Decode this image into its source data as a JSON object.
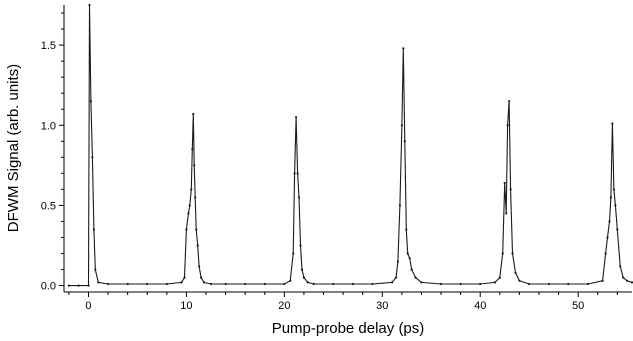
{
  "chart_data": {
    "type": "line",
    "title": "",
    "xlabel": "Pump-probe delay (ps)",
    "ylabel": "DFWM Signal (arb. units)",
    "xlim": [
      -2.5,
      55.5
    ],
    "ylim": [
      -0.04,
      1.75
    ],
    "x_ticks": [
      0,
      10,
      20,
      30,
      40,
      50
    ],
    "y_ticks": [
      0.0,
      0.5,
      1.0,
      1.5
    ],
    "x_tick_labels": [
      "0",
      "10",
      "20",
      "30",
      "40",
      "50"
    ],
    "y_tick_labels": [
      "0.0",
      "0.5",
      "1.0",
      "1.5"
    ],
    "grid": false,
    "line_color": "#1a1a1a",
    "series": [
      {
        "style": "line+markers",
        "x": [
          -2.0,
          -1.0,
          0.0,
          0.1,
          0.25,
          0.4,
          0.55,
          0.7,
          1.0,
          2.0,
          4.0,
          6.0,
          8.0,
          9.5,
          9.8,
          10.0,
          10.2,
          10.35,
          10.5,
          10.6,
          10.7,
          10.8,
          10.9,
          11.0,
          11.15,
          11.3,
          11.5,
          11.8,
          12.5,
          14.0,
          16.0,
          18.0,
          20.0,
          20.6,
          20.9,
          21.05,
          21.2,
          21.35,
          21.5,
          21.65,
          21.8,
          22.0,
          22.4,
          23.0,
          25.0,
          27.0,
          29.0,
          31.0,
          31.4,
          31.6,
          31.8,
          32.0,
          32.15,
          32.3,
          32.45,
          32.6,
          32.8,
          33.0,
          33.4,
          34.0,
          36.0,
          38.0,
          40.0,
          41.5,
          42.0,
          42.3,
          42.5,
          42.65,
          42.8,
          42.95,
          43.1,
          43.3,
          43.6,
          44.0,
          45.0,
          47.0,
          49.0,
          51.0,
          52.5,
          52.8,
          53.0,
          53.2,
          53.35,
          53.5,
          53.65,
          53.8,
          54.0,
          54.3,
          54.6,
          55.0,
          55.5
        ],
        "y": [
          0.0,
          0.0,
          0.0,
          1.75,
          1.15,
          0.8,
          0.35,
          0.1,
          0.02,
          0.01,
          0.01,
          0.01,
          0.01,
          0.02,
          0.05,
          0.35,
          0.45,
          0.5,
          0.6,
          0.85,
          1.07,
          0.75,
          0.55,
          0.35,
          0.25,
          0.12,
          0.05,
          0.02,
          0.01,
          0.01,
          0.01,
          0.01,
          0.01,
          0.03,
          0.2,
          0.7,
          1.05,
          0.7,
          0.55,
          0.25,
          0.1,
          0.05,
          0.02,
          0.01,
          0.01,
          0.01,
          0.01,
          0.02,
          0.05,
          0.15,
          0.5,
          1.0,
          1.48,
          0.9,
          0.35,
          0.2,
          0.17,
          0.1,
          0.05,
          0.02,
          0.01,
          0.01,
          0.01,
          0.02,
          0.05,
          0.2,
          0.64,
          0.45,
          1.0,
          1.15,
          0.6,
          0.2,
          0.08,
          0.03,
          0.01,
          0.01,
          0.01,
          0.01,
          0.03,
          0.2,
          0.3,
          0.4,
          0.55,
          1.01,
          0.6,
          0.5,
          0.35,
          0.12,
          0.05,
          0.03,
          0.02
        ]
      }
    ]
  }
}
